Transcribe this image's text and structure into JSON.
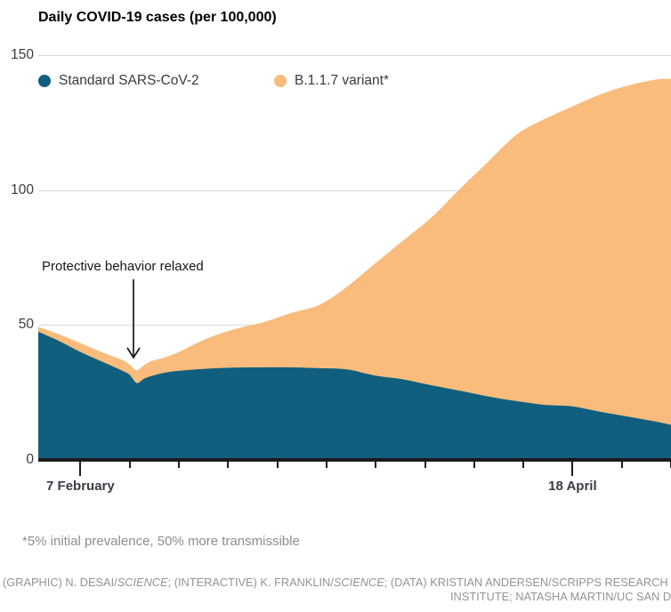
{
  "title": "Daily COVID-19 cases (per 100,000)",
  "legend": [
    {
      "label": "Standard SARS-CoV-2",
      "color": "#105F7E"
    },
    {
      "label": "B.1.1.7 variant*",
      "color": "#F9BC7C"
    }
  ],
  "annotation": {
    "text": "Protective behavior relaxed"
  },
  "footnote": "*5% initial prevalence, 50% more transmissible",
  "credits": {
    "line1_parts": [
      {
        "text": "(GRAPHIC) N. DESAI/"
      },
      {
        "text": "SCIENCE",
        "italic": true
      },
      {
        "text": "; (INTERACTIVE) K. FRANKLIN/"
      },
      {
        "text": "SCIENCE",
        "italic": true
      },
      {
        "text": "; (DATA) KRISTIAN ANDERSEN/SCRIPPS RESEARCH"
      }
    ],
    "line2": "INSTITUTE; NATASHA MARTIN/UC SAN DIEGO"
  },
  "chart_data": {
    "type": "area",
    "stacked": true,
    "title": "Daily COVID-19 cases (per 100,000)",
    "xlabel": "",
    "ylabel": "Daily cases per 100,000",
    "ylim": [
      0,
      150
    ],
    "y_ticks": [
      0,
      50,
      100,
      150
    ],
    "grid": "horizontal",
    "legend_position": "top-left inside plot",
    "x_unit": "days (day 0 = 1 February)",
    "x_domain_days": [
      0,
      90
    ],
    "x_days": [
      0,
      3,
      6,
      9,
      12,
      13,
      14,
      15,
      16,
      18,
      20,
      24,
      28,
      32,
      36,
      40,
      44,
      48,
      52,
      56,
      60,
      64,
      68,
      72,
      76,
      80,
      84,
      88,
      90
    ],
    "series": [
      {
        "name": "Standard SARS-CoV-2",
        "color": "#105F7E",
        "values": [
          47.5,
          44,
          40,
          36.5,
          33,
          31.5,
          28.5,
          30,
          31,
          32.3,
          33,
          33.8,
          34.2,
          34.3,
          34.3,
          34,
          33.5,
          31.2,
          29.8,
          27.6,
          25.6,
          23.5,
          21.8,
          20.4,
          19.8,
          17.8,
          16,
          14.1,
          13
        ]
      },
      {
        "name": "B.1.1.7 variant*",
        "color": "#F9BC7C",
        "values": [
          1.8,
          2.5,
          3.3,
          3.5,
          4,
          3.8,
          4.7,
          5,
          5.5,
          5.7,
          7,
          11.2,
          14.3,
          16.7,
          20.2,
          23.5,
          30.9,
          41.8,
          51.7,
          62.4,
          74.9,
          87,
          98.7,
          105.9,
          111.2,
          117.7,
          122.8,
          126.9,
          128.2
        ]
      }
    ],
    "x_ticks": {
      "first_day": 6,
      "interval_days": 7,
      "count": 13,
      "labels": [
        {
          "day": 6,
          "text": "7 February"
        },
        {
          "day": 76,
          "text": "18 April"
        }
      ]
    },
    "annotation": {
      "text": "Protective behavior relaxed",
      "points_to_day": 14
    }
  }
}
